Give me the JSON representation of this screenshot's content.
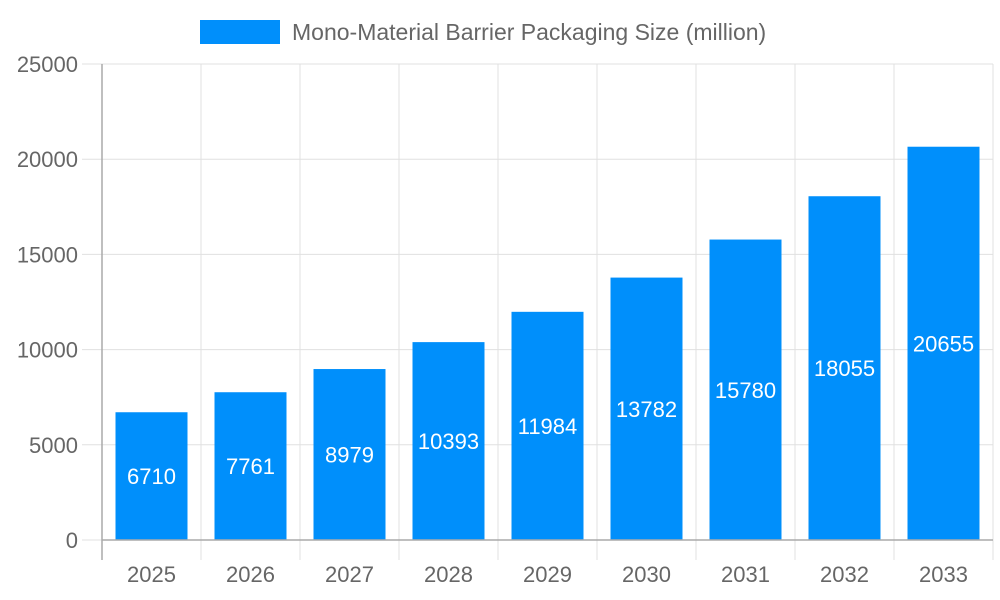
{
  "chart_data": {
    "type": "bar",
    "categories": [
      "2025",
      "2026",
      "2027",
      "2028",
      "2029",
      "2030",
      "2031",
      "2032",
      "2033"
    ],
    "series": [
      {
        "name": "Mono-Material Barrier Packaging Size (million)",
        "values": [
          6710,
          7761,
          8979,
          10393,
          11984,
          13782,
          15780,
          18055,
          20655
        ]
      }
    ],
    "ylim": [
      0,
      25000
    ],
    "yticks": [
      "0",
      "5000",
      "10000",
      "15000",
      "20000",
      "25000"
    ],
    "grid": true,
    "legend": "top",
    "bar_color": "#008ffb",
    "data_labels": true
  }
}
